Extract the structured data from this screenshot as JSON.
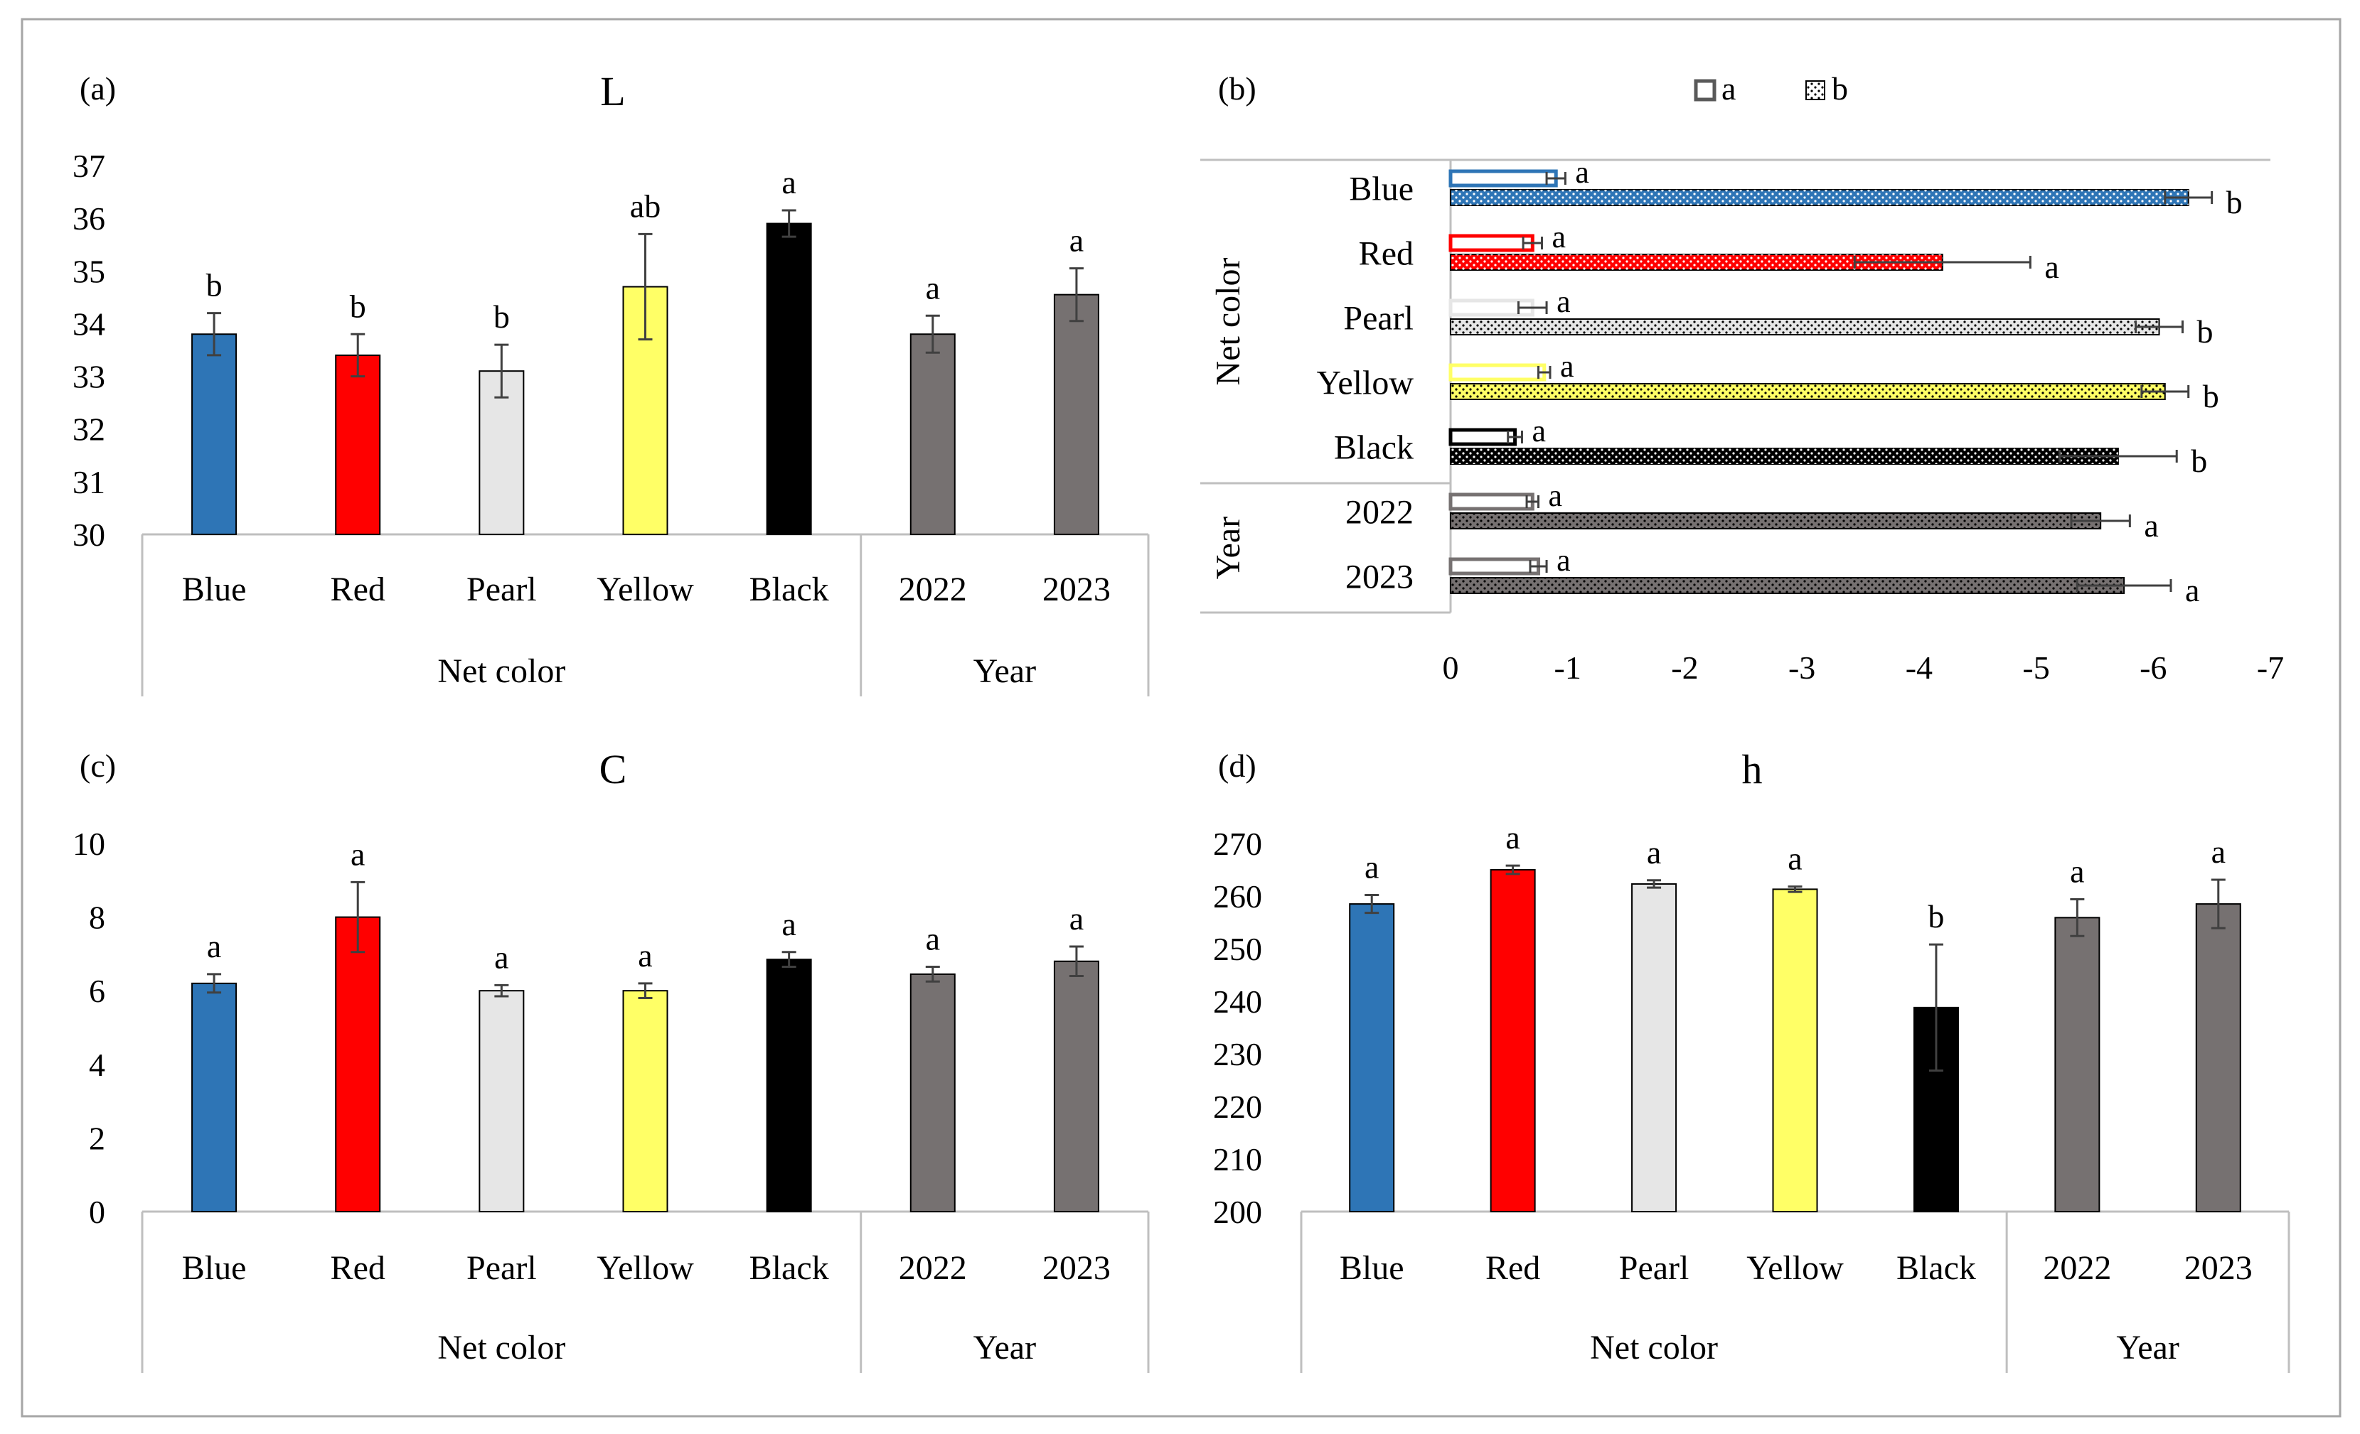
{
  "figure": {
    "panels": [
      {
        "id": "a",
        "label": "(a)",
        "chart_title": "L"
      },
      {
        "id": "b",
        "label": "(b)",
        "chart_title": ""
      },
      {
        "id": "c",
        "label": "(c)",
        "chart_title": "C"
      },
      {
        "id": "d",
        "label": "(d)",
        "chart_title": "h"
      }
    ]
  },
  "colors": {
    "Blue": "#2e75b6",
    "Red": "#ff0000",
    "Pearl": "#e6e6e6",
    "Yellow": "#ffff66",
    "Black": "#000000",
    "2022": "#767171",
    "2023": "#767171",
    "axis": "#bfbfbf",
    "error_bar": "#404040"
  },
  "chart_data": [
    {
      "panel": "a",
      "type": "bar",
      "title": "L",
      "groups": [
        {
          "name": "Net color",
          "categories": [
            "Blue",
            "Red",
            "Pearl",
            "Yellow",
            "Black"
          ]
        },
        {
          "name": "Year",
          "categories": [
            "2022",
            "2023"
          ]
        }
      ],
      "categories": [
        "Blue",
        "Red",
        "Pearl",
        "Yellow",
        "Black",
        "2022",
        "2023"
      ],
      "values": [
        33.8,
        33.4,
        33.1,
        34.7,
        35.9,
        33.8,
        34.55
      ],
      "errors": [
        0.4,
        0.4,
        0.5,
        1.0,
        0.25,
        0.35,
        0.5
      ],
      "letters": [
        "b",
        "b",
        "b",
        "ab",
        "a",
        "a",
        "a"
      ],
      "ylim": [
        30,
        37
      ],
      "yticks": [
        30,
        31,
        32,
        33,
        34,
        35,
        36,
        37
      ],
      "xlabel": "",
      "ylabel": ""
    },
    {
      "panel": "b",
      "type": "bar",
      "orientation": "horizontal",
      "title": "",
      "legend": {
        "position": "top",
        "entries": [
          {
            "name": "a",
            "style": "outline"
          },
          {
            "name": "b",
            "style": "dotted"
          }
        ]
      },
      "groups": [
        {
          "name": "Net color",
          "categories": [
            "Blue",
            "Red",
            "Pearl",
            "Yellow",
            "Black"
          ]
        },
        {
          "name": "Year",
          "categories": [
            "2022",
            "2023"
          ]
        }
      ],
      "categories": [
        "Blue",
        "Red",
        "Pearl",
        "Yellow",
        "Black",
        "2022",
        "2023"
      ],
      "series": [
        {
          "name": "a",
          "values": [
            -0.9,
            -0.7,
            -0.7,
            -0.8,
            -0.55,
            -0.7,
            -0.75
          ],
          "errors": [
            0.08,
            0.08,
            0.12,
            0.05,
            0.06,
            0.05,
            0.07
          ],
          "letters": [
            "a",
            "a",
            "a",
            "a",
            "a",
            "a",
            "a"
          ]
        },
        {
          "name": "b",
          "values": [
            -6.3,
            -4.2,
            -6.05,
            -6.1,
            -5.7,
            -5.55,
            -5.75
          ],
          "errors": [
            0.2,
            0.75,
            0.2,
            0.2,
            0.5,
            0.25,
            0.4
          ],
          "letters": [
            "b",
            "a",
            "b",
            "b",
            "b",
            "a",
            "a"
          ]
        }
      ],
      "xlim": [
        0,
        -7
      ],
      "xticks": [
        0,
        -1,
        -2,
        -3,
        -4,
        -5,
        -6,
        -7
      ],
      "xtick_labels": [
        "0",
        "-1",
        "-2",
        "-3",
        "-4",
        "-5",
        "-6",
        "-7"
      ]
    },
    {
      "panel": "c",
      "type": "bar",
      "title": "C",
      "groups": [
        {
          "name": "Net color",
          "categories": [
            "Blue",
            "Red",
            "Pearl",
            "Yellow",
            "Black"
          ]
        },
        {
          "name": "Year",
          "categories": [
            "2022",
            "2023"
          ]
        }
      ],
      "categories": [
        "Blue",
        "Red",
        "Pearl",
        "Yellow",
        "Black",
        "2022",
        "2023"
      ],
      "values": [
        6.2,
        8.0,
        6.0,
        6.0,
        6.85,
        6.45,
        6.8
      ],
      "errors": [
        0.25,
        0.95,
        0.15,
        0.2,
        0.2,
        0.2,
        0.4
      ],
      "letters": [
        "a",
        "a",
        "a",
        "a",
        "a",
        "a",
        "a"
      ],
      "ylim": [
        0,
        10
      ],
      "yticks": [
        0,
        2,
        4,
        6,
        8,
        10
      ],
      "xlabel": "",
      "ylabel": ""
    },
    {
      "panel": "d",
      "type": "bar",
      "title": "h",
      "groups": [
        {
          "name": "Net color",
          "categories": [
            "Blue",
            "Red",
            "Pearl",
            "Yellow",
            "Black"
          ]
        },
        {
          "name": "Year",
          "categories": [
            "2022",
            "2023"
          ]
        }
      ],
      "categories": [
        "Blue",
        "Red",
        "Pearl",
        "Yellow",
        "Black",
        "2022",
        "2023"
      ],
      "values": [
        258.5,
        265,
        262.3,
        261.3,
        238.8,
        255.9,
        258.5
      ],
      "errors": [
        1.7,
        0.8,
        0.7,
        0.5,
        12.0,
        3.5,
        4.6
      ],
      "letters": [
        "a",
        "a",
        "a",
        "a",
        "b",
        "a",
        "a"
      ],
      "ylim": [
        200,
        270
      ],
      "yticks": [
        200,
        210,
        220,
        230,
        240,
        250,
        260,
        270
      ],
      "xlabel": "",
      "ylabel": ""
    }
  ]
}
